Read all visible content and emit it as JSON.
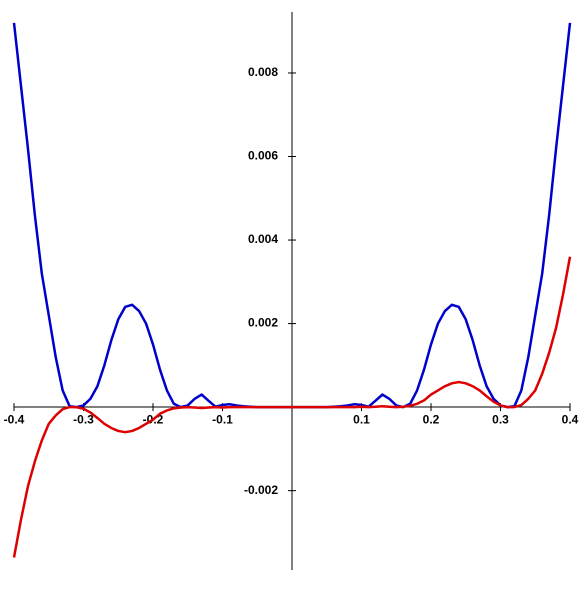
{
  "chart_data": {
    "type": "line",
    "x": [
      -0.4,
      -0.39,
      -0.38,
      -0.37,
      -0.36,
      -0.35,
      -0.34,
      -0.33,
      -0.32,
      -0.31,
      -0.3,
      -0.29,
      -0.28,
      -0.27,
      -0.26,
      -0.25,
      -0.24,
      -0.23,
      -0.22,
      -0.21,
      -0.2,
      -0.19,
      -0.18,
      -0.17,
      -0.16,
      -0.15,
      -0.14,
      -0.13,
      -0.12,
      -0.11,
      -0.1,
      -0.09,
      -0.08,
      -0.07,
      -0.06,
      -0.05,
      -0.04,
      -0.03,
      -0.02,
      -0.01,
      0,
      0.01,
      0.02,
      0.03,
      0.04,
      0.05,
      0.06,
      0.07,
      0.08,
      0.09,
      0.1,
      0.11,
      0.12,
      0.13,
      0.14,
      0.15,
      0.16,
      0.17,
      0.18,
      0.19,
      0.2,
      0.21,
      0.22,
      0.23,
      0.24,
      0.25,
      0.26,
      0.27,
      0.28,
      0.29,
      0.3,
      0.31,
      0.32,
      0.33,
      0.34,
      0.35,
      0.36,
      0.37,
      0.38,
      0.39,
      0.4
    ],
    "series": [
      {
        "color": "#0000cc",
        "values": [
          0.0092,
          0.0077,
          0.0062,
          0.0046,
          0.0032,
          0.0022,
          0.0012,
          0.0004,
          2e-05,
          0,
          4e-05,
          0.0002,
          0.0005,
          0.001,
          0.0016,
          0.0021,
          0.0024,
          0.00245,
          0.0023,
          0.002,
          0.0015,
          0.0009,
          0.0004,
          8e-05,
          0,
          4e-05,
          0.0002,
          0.0003,
          0.00015,
          1e-05,
          5e-05,
          7e-05,
          4e-05,
          2e-05,
          1e-05,
          0,
          0,
          0,
          0,
          0,
          0,
          0,
          0,
          0,
          0,
          0,
          1e-05,
          2e-05,
          4e-05,
          7e-05,
          5e-05,
          1e-05,
          0.00015,
          0.0003,
          0.0002,
          4e-05,
          0,
          8e-05,
          0.0004,
          0.0009,
          0.0015,
          0.002,
          0.0023,
          0.00245,
          0.0024,
          0.0021,
          0.0016,
          0.001,
          0.0005,
          0.0002,
          4e-05,
          0,
          2e-05,
          0.0004,
          0.0012,
          0.0022,
          0.0032,
          0.0046,
          0.0062,
          0.0077,
          0.0092
        ]
      },
      {
        "color": "#dd0000",
        "values": [
          -0.0036,
          -0.0027,
          -0.0019,
          -0.0013,
          -0.0008,
          -0.0004,
          -0.0002,
          -5e-05,
          0,
          0,
          -4e-05,
          -0.00013,
          -0.00026,
          -0.0004,
          -0.0005,
          -0.00057,
          -0.0006,
          -0.00057,
          -0.0005,
          -0.0004,
          -0.0003,
          -0.00016,
          -8e-05,
          -3e-05,
          -1e-05,
          0,
          -1e-05,
          -2e-05,
          -1e-05,
          0,
          -1e-05,
          0,
          0,
          0,
          0,
          0,
          0,
          0,
          0,
          0,
          0,
          0,
          0,
          0,
          0,
          0,
          0,
          0,
          0,
          0,
          1e-05,
          0,
          1e-05,
          2e-05,
          1e-05,
          0,
          1e-05,
          3e-05,
          8e-05,
          0.00016,
          0.0003,
          0.0004,
          0.0005,
          0.00057,
          0.0006,
          0.00057,
          0.0005,
          0.0004,
          0.00026,
          0.00013,
          4e-05,
          0,
          0,
          5e-05,
          0.0002,
          0.0004,
          0.0008,
          0.0013,
          0.0019,
          0.0027,
          0.0036
        ]
      }
    ],
    "xlim": [
      -0.4,
      0.4
    ],
    "ylim": [
      -0.0039,
      0.00946
    ],
    "xticks": [
      -0.4,
      -0.3,
      -0.2,
      -0.1,
      0.1,
      0.2,
      0.3,
      0.4
    ],
    "yticks": [
      -0.002,
      0.002,
      0.004,
      0.006,
      0.008
    ]
  }
}
